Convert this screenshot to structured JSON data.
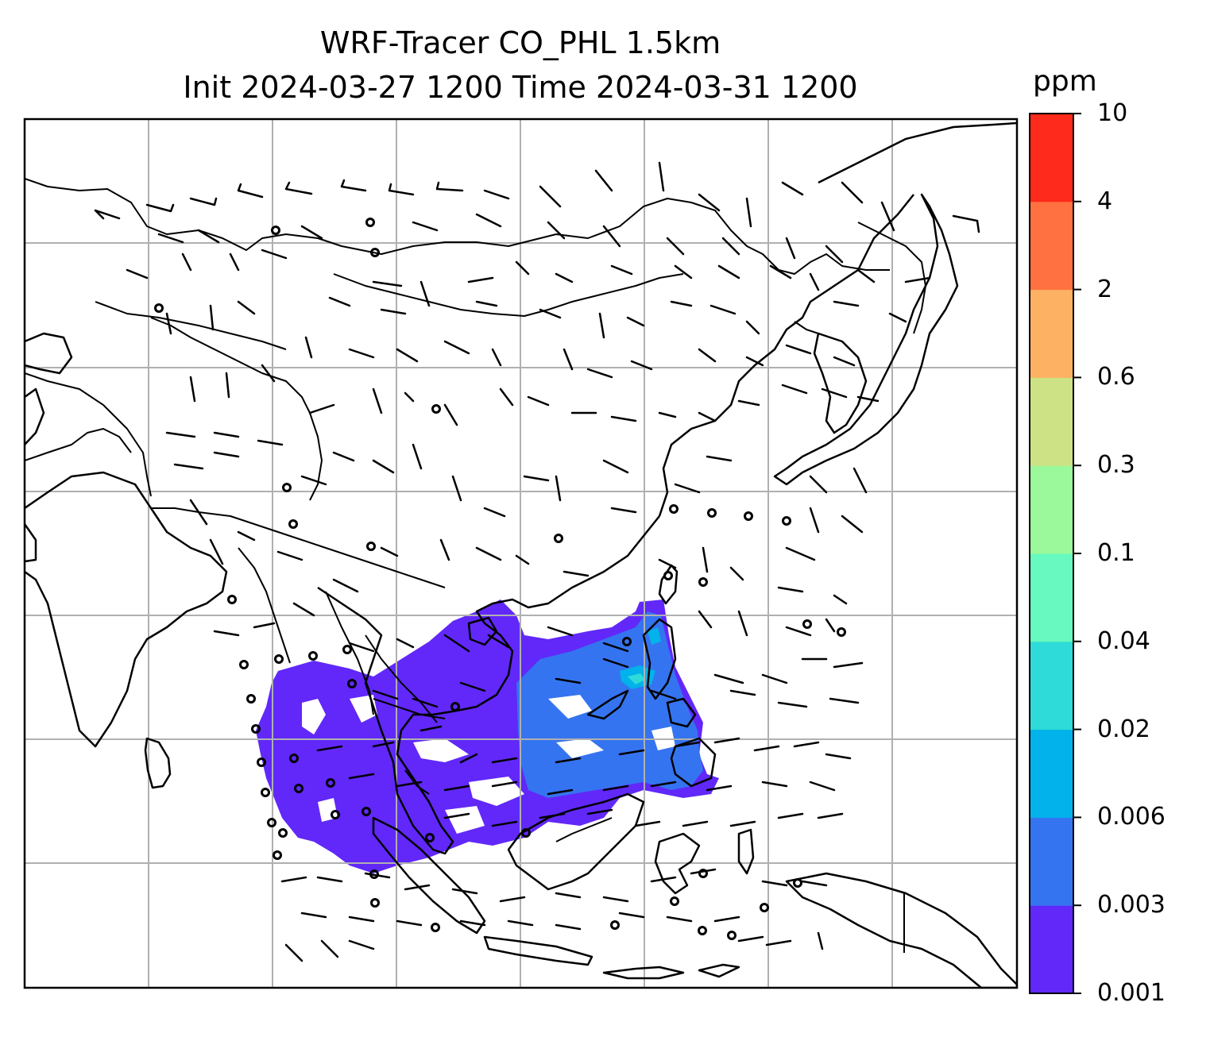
{
  "title": {
    "line1": "WRF-Tracer CO_PHL 1.5km",
    "line2": "Init 2024-03-27 1200 Time 2024-03-31 1200"
  },
  "colorbar": {
    "unit": "ppm",
    "levels": [
      "0.001",
      "0.003",
      "0.006",
      "0.02",
      "0.04",
      "0.1",
      "0.3",
      "0.6",
      "2",
      "4",
      "10"
    ],
    "colors": [
      "#6128f9",
      "#3574f0",
      "#02b2ea",
      "#2edbd8",
      "#67f9bf",
      "#9bf99b",
      "#cde185",
      "#fcb163",
      "#ff7140",
      "#fe2a1b"
    ]
  },
  "map": {
    "background": "#ffffff",
    "gridline_color": "#b0b0b0",
    "coastline_color": "#000000",
    "layers": [
      "coastlines",
      "country-borders",
      "gridlines",
      "wind-barbs",
      "tracer-concentration-fill"
    ]
  }
}
